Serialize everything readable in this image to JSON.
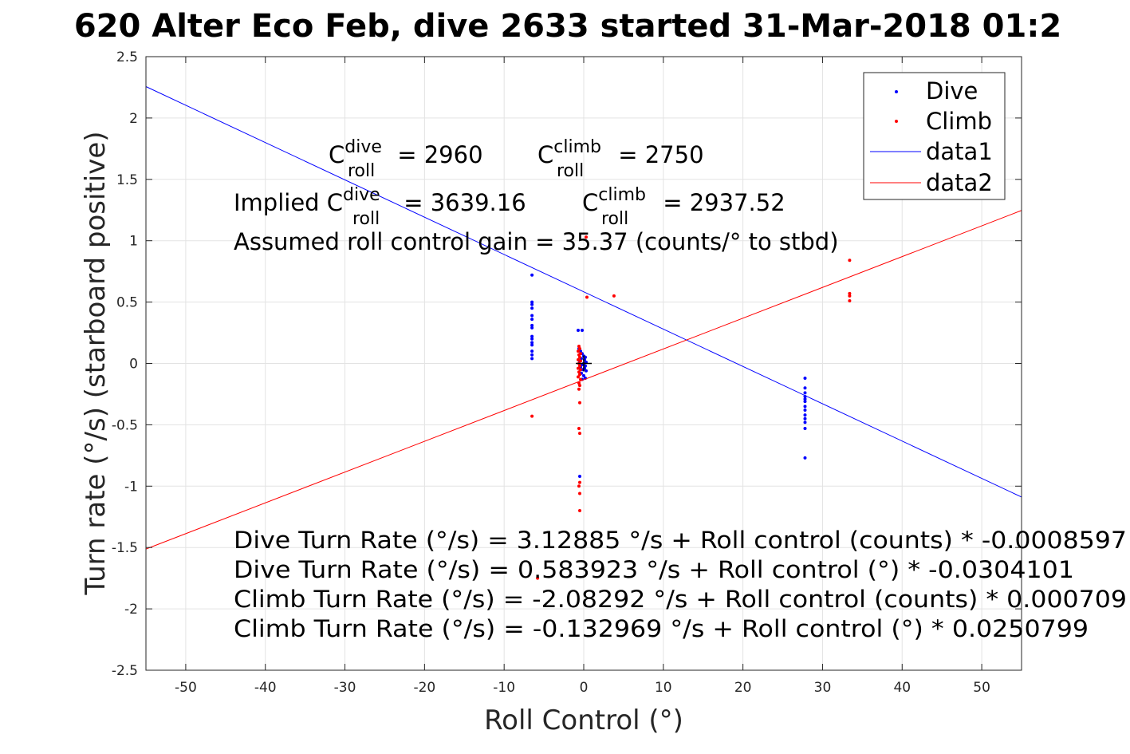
{
  "chart_data": {
    "type": "scatter",
    "title": "620 Alter Eco Feb, dive 2633 started 31-Mar-2018 01:2",
    "xlabel": "Roll Control (°)",
    "ylabel": "Turn rate (°/s) (starboard positive)",
    "xlim": [
      -55,
      55
    ],
    "ylim": [
      -2.5,
      2.5
    ],
    "xticks": [
      -50,
      -40,
      -30,
      -20,
      -10,
      0,
      10,
      20,
      30,
      40,
      50
    ],
    "yticks": [
      -2.5,
      -2,
      -1.5,
      -1,
      -0.5,
      0,
      0.5,
      1,
      1.5,
      2,
      2.5
    ],
    "xtick_labels": [
      "-50",
      "-40",
      "-30",
      "-20",
      "-10",
      "0",
      "10",
      "20",
      "30",
      "40",
      "50"
    ],
    "ytick_labels": [
      "-2.5",
      "-2",
      "-1.5",
      "-1",
      "-0.5",
      "0",
      "0.5",
      "1",
      "1.5",
      "2",
      "2.5"
    ],
    "grid": true,
    "legend_position": "top-right",
    "series": [
      {
        "name": "Dive",
        "kind": "points",
        "color": "#0000ff",
        "points": [
          [
            -6.5,
            0.72
          ],
          [
            -6.5,
            0.5
          ],
          [
            -6.5,
            0.48
          ],
          [
            -6.5,
            0.45
          ],
          [
            -6.5,
            0.39
          ],
          [
            -6.5,
            0.36
          ],
          [
            -6.5,
            0.31
          ],
          [
            -6.5,
            0.29
          ],
          [
            -6.5,
            0.22
          ],
          [
            -6.5,
            0.2
          ],
          [
            -6.5,
            0.17
          ],
          [
            -6.5,
            0.15
          ],
          [
            -6.5,
            0.1
          ],
          [
            -6.5,
            0.07
          ],
          [
            -6.5,
            0.04
          ],
          [
            -0.7,
            0.27
          ],
          [
            -0.2,
            0.27
          ],
          [
            -0.6,
            0.12
          ],
          [
            -0.4,
            0.1
          ],
          [
            -0.2,
            0.08
          ],
          [
            0.0,
            0.06
          ],
          [
            0.2,
            0.05
          ],
          [
            -0.3,
            0.04
          ],
          [
            0.1,
            0.03
          ],
          [
            -0.5,
            0.02
          ],
          [
            0.3,
            0.01
          ],
          [
            0.0,
            0.0
          ],
          [
            -0.2,
            -0.01
          ],
          [
            0.2,
            -0.02
          ],
          [
            -0.4,
            -0.03
          ],
          [
            0.1,
            -0.04
          ],
          [
            -0.1,
            -0.05
          ],
          [
            0.3,
            -0.06
          ],
          [
            -0.3,
            -0.08
          ],
          [
            0.0,
            -0.1
          ],
          [
            0.2,
            -0.12
          ],
          [
            -0.2,
            -0.13
          ],
          [
            -0.5,
            -0.92
          ],
          [
            27.8,
            -0.12
          ],
          [
            27.8,
            -0.2
          ],
          [
            27.8,
            -0.24
          ],
          [
            27.8,
            -0.27
          ],
          [
            27.8,
            -0.29
          ],
          [
            27.8,
            -0.31
          ],
          [
            27.8,
            -0.35
          ],
          [
            27.8,
            -0.38
          ],
          [
            27.8,
            -0.42
          ],
          [
            27.8,
            -0.45
          ],
          [
            27.8,
            -0.48
          ],
          [
            27.8,
            -0.53
          ],
          [
            27.8,
            -0.77
          ]
        ]
      },
      {
        "name": "Climb",
        "kind": "points",
        "color": "#ff0000",
        "points": [
          [
            0.3,
            1.03
          ],
          [
            0.4,
            0.54
          ],
          [
            3.8,
            0.55
          ],
          [
            33.4,
            0.84
          ],
          [
            33.4,
            0.57
          ],
          [
            33.4,
            0.55
          ],
          [
            33.4,
            0.51
          ],
          [
            -6.5,
            -0.43
          ],
          [
            -0.6,
            0.14
          ],
          [
            -0.5,
            0.12
          ],
          [
            -0.7,
            0.1
          ],
          [
            -0.4,
            0.08
          ],
          [
            -0.6,
            0.07
          ],
          [
            -0.5,
            0.05
          ],
          [
            -0.7,
            0.03
          ],
          [
            -0.4,
            0.02
          ],
          [
            -0.6,
            0.0
          ],
          [
            -0.5,
            -0.02
          ],
          [
            -0.7,
            -0.04
          ],
          [
            -0.4,
            -0.05
          ],
          [
            -0.6,
            -0.07
          ],
          [
            -0.5,
            -0.09
          ],
          [
            -0.7,
            -0.11
          ],
          [
            -0.4,
            -0.13
          ],
          [
            -0.6,
            -0.16
          ],
          [
            -0.5,
            -0.18
          ],
          [
            -0.6,
            -0.21
          ],
          [
            -0.5,
            -0.32
          ],
          [
            -0.6,
            -0.53
          ],
          [
            -0.5,
            -0.57
          ],
          [
            -0.5,
            -0.97
          ],
          [
            -0.6,
            -1.0
          ],
          [
            -0.5,
            -1.06
          ],
          [
            -0.5,
            -1.2
          ],
          [
            -5.8,
            -1.75
          ]
        ]
      },
      {
        "name": "data1",
        "kind": "line",
        "color": "#0000ff",
        "x": [
          -55,
          55
        ],
        "y": [
          2.2561,
          -1.0887
        ]
      },
      {
        "name": "data2",
        "kind": "line",
        "color": "#ff0000",
        "x": [
          -55,
          55
        ],
        "y": [
          -1.5124,
          1.2466
        ]
      }
    ],
    "center_marker": {
      "x": 0,
      "y": 0,
      "color": "#000000"
    },
    "annotations": {
      "c_roll_dive": {
        "prefix": "C",
        "sup": "dive",
        "sub": "roll",
        "value": " = 2960"
      },
      "c_roll_climb": {
        "prefix": "C",
        "sup": "climb",
        "sub": "roll",
        "value": " = 2750"
      },
      "implied_dive": {
        "prefix": "Implied C",
        "sup": "dive",
        "sub": "roll",
        "value": " = 3639.16"
      },
      "implied_climb": {
        "prefix": "C",
        "sup": "climb",
        "sub": "roll",
        "value": " = 2937.52"
      },
      "gain": "Assumed roll control gain = 35.37 (counts/° to stbd)",
      "eq1": "Dive Turn Rate (°/s) = 3.12885 °/s + Roll control (counts) * -0.0008597",
      "eq2": "Dive Turn Rate (°/s) = 0.583923 °/s + Roll control (°) * -0.0304101",
      "eq3": "Climb Turn Rate (°/s) = -2.08292 °/s + Roll control (counts) * 0.000709",
      "eq4": "Climb Turn Rate (°/s) = -0.132969 °/s + Roll control (°) * 0.0250799"
    }
  }
}
